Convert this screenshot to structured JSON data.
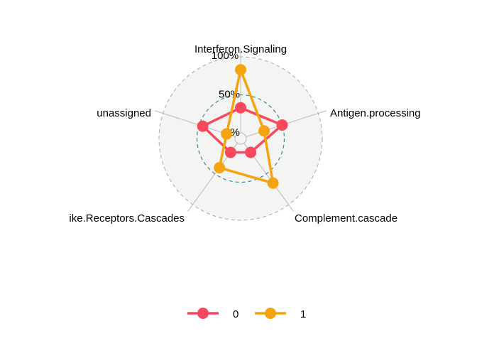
{
  "chart_data": {
    "type": "radar",
    "axes": [
      "Interferon.Signaling",
      "Antigen.processing",
      "Complement.cascade",
      "ike.Receptors.Cascades",
      "unassigned"
    ],
    "grid_labels": [
      "0%",
      "50%",
      "100%"
    ],
    "range": [
      0,
      100
    ],
    "legend_position": "bottom",
    "series": [
      {
        "name": "0",
        "color": "#f8485e",
        "values": [
          33,
          50,
          15,
          15,
          45
        ]
      },
      {
        "name": "1",
        "color": "#f5a30f",
        "values": [
          83,
          25,
          65,
          40,
          12
        ]
      }
    ]
  }
}
